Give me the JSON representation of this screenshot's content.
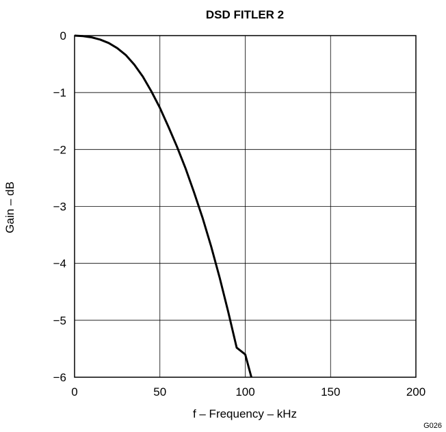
{
  "chart_data": {
    "type": "line",
    "title": "DSD FITLER 2",
    "xlabel": "f – Frequency – kHz",
    "ylabel": "Gain – dB",
    "xlim": [
      0,
      200
    ],
    "ylim": [
      -6,
      0
    ],
    "xticks": [
      0,
      50,
      100,
      150,
      200
    ],
    "xtick_labels": [
      "0",
      "50",
      "100",
      "150",
      "200"
    ],
    "yticks": [
      0,
      -1,
      -2,
      -3,
      -4,
      -5,
      -6
    ],
    "ytick_labels": [
      "0",
      "−1",
      "−2",
      "−3",
      "−4",
      "−5",
      "−6"
    ],
    "grid": true,
    "series": [
      {
        "x": [
          0,
          5,
          10,
          15,
          20,
          25,
          30,
          35,
          40,
          45,
          50,
          55,
          60,
          65,
          70,
          75,
          80,
          85,
          90,
          95,
          100,
          103.6
        ],
        "y": [
          0,
          -0.01,
          -0.03,
          -0.07,
          -0.13,
          -0.22,
          -0.34,
          -0.51,
          -0.72,
          -0.98,
          -1.27,
          -1.6,
          -1.95,
          -2.33,
          -2.75,
          -3.2,
          -3.7,
          -4.25,
          -4.85,
          -5.48,
          -5.6,
          -6.0
        ]
      }
    ],
    "figure_id": "G026"
  },
  "colors": {
    "line": "#000000",
    "grid": "#000000",
    "background": "#ffffff"
  }
}
